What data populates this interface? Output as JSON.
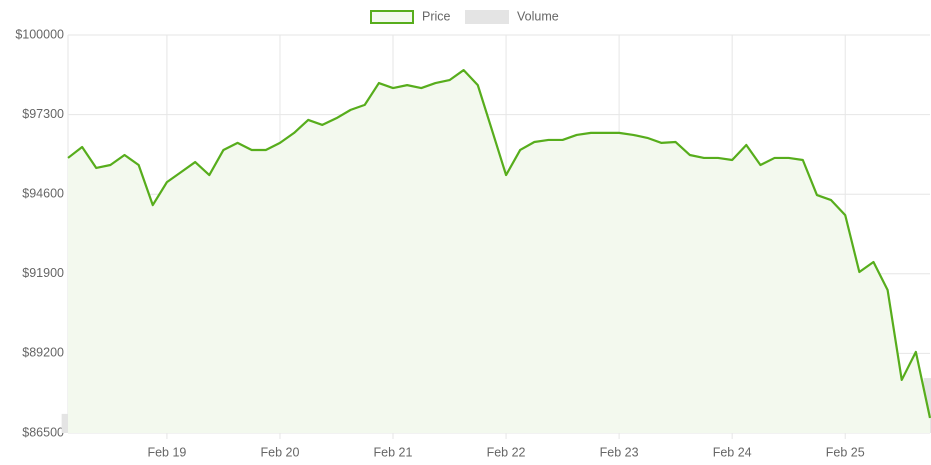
{
  "chart_data": {
    "type": "line",
    "categories": [
      null,
      null,
      null,
      null,
      null,
      null,
      null,
      "Feb 19",
      null,
      null,
      null,
      null,
      null,
      null,
      null,
      "Feb 20",
      null,
      null,
      null,
      null,
      null,
      null,
      null,
      "Feb 21",
      null,
      null,
      null,
      null,
      null,
      null,
      null,
      "Feb 22",
      null,
      null,
      null,
      null,
      null,
      null,
      null,
      "Feb 23",
      null,
      null,
      null,
      null,
      null,
      null,
      null,
      "Feb 24",
      null,
      null,
      null,
      null,
      null,
      null,
      null,
      "Feb 25",
      null,
      null,
      null,
      null,
      null,
      null
    ],
    "series": [
      {
        "name": "Price",
        "color": "#57ad1c",
        "fill": "#f3f9ee",
        "values": [
          95830,
          96200,
          95490,
          95590,
          95930,
          95590,
          94230,
          95010,
          95350,
          95690,
          95250,
          96100,
          96340,
          96100,
          96100,
          96340,
          96680,
          97120,
          96950,
          97180,
          97460,
          97630,
          98370,
          98200,
          98300,
          98200,
          98370,
          98470,
          98810,
          98300,
          96780,
          95250,
          96100,
          96370,
          96440,
          96440,
          96610,
          96680,
          96680,
          96680,
          96610,
          96510,
          96340,
          96370,
          95930,
          95830,
          95830,
          95760,
          96270,
          95590,
          95830,
          95830,
          95760,
          94570,
          94400,
          93890,
          91960,
          92300,
          91350,
          88300,
          89250,
          87010
        ]
      },
      {
        "name": "Volume",
        "color": "#e4e4e4",
        "axis": "y2",
        "values": [
          4.8,
          4.8,
          4.8,
          4.8,
          4.9,
          5.0,
          5.2,
          6.5,
          6.8,
          6.9,
          6.9,
          6.8,
          6.8,
          6.7,
          6.2,
          5.6,
          5.5,
          5.5,
          5.5,
          5.6,
          5.7,
          5.8,
          5.8,
          5.8,
          5.9,
          6.0,
          6.3,
          6.7,
          7.2,
          8.3,
          8.8,
          8.8,
          8.8,
          8.8,
          8.7,
          8.6,
          8.3,
          7.5,
          5.5,
          3.5,
          3.3,
          3.3,
          3.3,
          3.2,
          3.2,
          3.2,
          3.2,
          3.3,
          3.4,
          3.6,
          3.9,
          4.4,
          5.0,
          6.8,
          7.2,
          7.6,
          8.4,
          9.2,
          9.8,
          12.0,
          13.2,
          13.8
        ]
      }
    ],
    "ylim": [
      86500,
      100000
    ],
    "yticks": [
      {
        "value": 86500,
        "label": "$86500"
      },
      {
        "value": 89200,
        "label": "$89200"
      },
      {
        "value": 91900,
        "label": "$91900"
      },
      {
        "value": 94600,
        "label": "$94600"
      },
      {
        "value": 97300,
        "label": "$97300"
      },
      {
        "value": 100000,
        "label": "$100000"
      }
    ],
    "y2lim": [
      0,
      100
    ],
    "grid": true,
    "legend": "top"
  }
}
